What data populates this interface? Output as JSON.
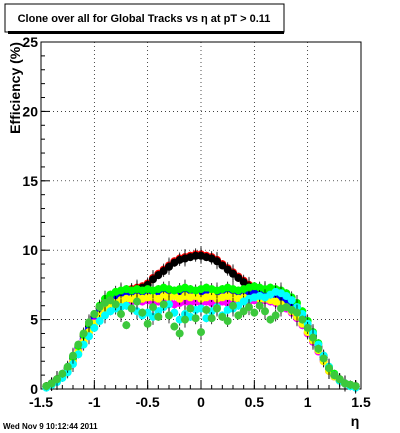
{
  "title": "Clone  over all for Global Tracks vs η at pT > 0.11",
  "ylabel": "Efficiency (%)",
  "xlabel": "η",
  "timestamp": "Wed Nov  9 10:12:44 2011",
  "x_tick_labels": [
    "-1.5",
    "-1",
    "-0.5",
    "0",
    "0.5",
    "1",
    "1.5"
  ],
  "y_tick_labels": [
    "0",
    "5",
    "10",
    "15",
    "20",
    "25"
  ],
  "chart_data": {
    "type": "scatter",
    "title": "Clone  over all for Global Tracks vs η at pT > 0.11",
    "xlabel": "η",
    "ylabel": "Efficiency (%)",
    "xlim": [
      -1.5,
      1.5
    ],
    "ylim": [
      0,
      25
    ],
    "grid": true,
    "x_ticks": [
      -1.5,
      -1,
      -0.5,
      0,
      0.5,
      1,
      1.5
    ],
    "y_ticks": [
      0,
      5,
      10,
      15,
      20,
      25
    ],
    "x": [
      -1.45,
      -1.4,
      -1.35,
      -1.3,
      -1.25,
      -1.2,
      -1.15,
      -1.1,
      -1.05,
      -1.0,
      -0.95,
      -0.9,
      -0.85,
      -0.8,
      -0.75,
      -0.7,
      -0.65,
      -0.6,
      -0.55,
      -0.5,
      -0.45,
      -0.4,
      -0.35,
      -0.3,
      -0.25,
      -0.2,
      -0.15,
      -0.1,
      -0.05,
      0.0,
      0.05,
      0.1,
      0.15,
      0.2,
      0.25,
      0.3,
      0.35,
      0.4,
      0.45,
      0.5,
      0.55,
      0.6,
      0.65,
      0.7,
      0.75,
      0.8,
      0.85,
      0.9,
      0.95,
      1.0,
      1.05,
      1.1,
      1.15,
      1.2,
      1.25,
      1.3,
      1.35,
      1.4,
      1.45
    ],
    "series": [
      {
        "color": "#ff0000",
        "values": [
          0.2,
          0.4,
          0.7,
          1.0,
          1.5,
          2.3,
          3.1,
          3.9,
          4.6,
          5.3,
          5.9,
          6.3,
          6.6,
          6.8,
          7.0,
          7.1,
          7.2,
          7.3,
          7.4,
          7.6,
          8.0,
          8.3,
          8.6,
          8.9,
          9.2,
          9.4,
          9.5,
          9.6,
          9.7,
          9.7,
          9.6,
          9.5,
          9.3,
          9.0,
          8.7,
          8.4,
          8.1,
          7.8,
          7.5,
          7.3,
          7.2,
          7.1,
          7.0,
          6.9,
          6.8,
          6.6,
          6.3,
          5.9,
          5.3,
          4.6,
          3.9,
          3.1,
          2.3,
          1.5,
          1.0,
          0.7,
          0.4,
          0.3,
          0.2
        ]
      },
      {
        "color": "#000000",
        "values": [
          0.2,
          0.4,
          0.7,
          1.0,
          1.5,
          2.3,
          3.0,
          3.8,
          4.5,
          5.2,
          5.8,
          6.2,
          6.5,
          6.7,
          6.9,
          7.0,
          7.1,
          7.2,
          7.3,
          7.5,
          7.9,
          8.2,
          8.5,
          8.8,
          9.1,
          9.3,
          9.4,
          9.5,
          9.6,
          9.6,
          9.5,
          9.4,
          9.2,
          8.9,
          8.6,
          8.3,
          8.0,
          7.7,
          7.4,
          7.2,
          7.1,
          7.0,
          6.9,
          6.8,
          6.7,
          6.5,
          6.2,
          5.8,
          5.2,
          4.5,
          3.8,
          3.0,
          2.3,
          1.5,
          1.0,
          0.7,
          0.4,
          0.3,
          0.2
        ]
      },
      {
        "color": "#0000ff",
        "values": [
          0.2,
          0.4,
          0.6,
          0.9,
          1.4,
          2.1,
          2.9,
          3.6,
          4.3,
          5.0,
          5.6,
          6.0,
          6.3,
          6.5,
          6.7,
          6.8,
          6.8,
          6.9,
          6.9,
          7.0,
          6.9,
          6.8,
          6.9,
          6.8,
          6.9,
          6.8,
          6.9,
          7.0,
          6.9,
          6.8,
          6.9,
          6.8,
          6.9,
          7.0,
          6.9,
          6.8,
          6.9,
          7.0,
          6.9,
          6.9,
          6.8,
          6.9,
          6.8,
          6.7,
          6.6,
          6.4,
          6.1,
          5.7,
          5.1,
          4.4,
          3.7,
          2.9,
          2.1,
          1.4,
          0.9,
          0.6,
          0.4,
          0.3,
          0.2
        ]
      },
      {
        "color": "#ff00ff",
        "values": [
          0.2,
          0.3,
          0.6,
          0.9,
          1.3,
          2.0,
          2.8,
          3.5,
          4.1,
          4.8,
          5.3,
          5.7,
          6.0,
          6.2,
          6.3,
          6.4,
          6.3,
          6.4,
          6.3,
          6.4,
          6.2,
          6.3,
          6.2,
          6.3,
          6.1,
          6.2,
          6.3,
          6.2,
          6.3,
          6.2,
          6.3,
          6.2,
          6.1,
          6.3,
          6.2,
          6.3,
          6.2,
          6.4,
          6.3,
          6.4,
          6.3,
          6.4,
          6.3,
          6.2,
          6.0,
          5.8,
          5.5,
          5.1,
          4.6,
          4.0,
          3.4,
          2.7,
          2.0,
          1.3,
          0.9,
          0.6,
          0.4,
          0.3,
          0.2
        ]
      },
      {
        "color": "#ffff00",
        "values": [
          0.2,
          0.3,
          0.6,
          0.9,
          1.3,
          2.0,
          2.7,
          3.4,
          4.1,
          4.7,
          5.3,
          5.7,
          6.0,
          6.2,
          6.4,
          6.5,
          6.5,
          6.6,
          6.5,
          6.6,
          6.6,
          6.5,
          6.7,
          6.6,
          6.7,
          6.5,
          6.7,
          6.6,
          6.7,
          6.5,
          6.6,
          6.7,
          6.5,
          6.6,
          6.7,
          6.6,
          6.5,
          6.6,
          6.5,
          6.6,
          6.5,
          6.5,
          6.4,
          6.3,
          6.1,
          5.9,
          5.6,
          5.2,
          4.7,
          4.1,
          3.5,
          2.8,
          2.0,
          1.3,
          0.9,
          0.6,
          0.4,
          0.3,
          0.2
        ]
      },
      {
        "color": "#00ff00",
        "values": [
          0.2,
          0.4,
          0.7,
          1.0,
          1.5,
          2.3,
          3.1,
          3.9,
          4.7,
          5.4,
          6.0,
          6.5,
          6.8,
          7.0,
          7.1,
          7.2,
          7.1,
          7.2,
          7.1,
          7.2,
          7.1,
          7.2,
          7.3,
          7.2,
          7.1,
          7.2,
          7.3,
          7.2,
          7.1,
          7.2,
          7.3,
          7.2,
          7.1,
          7.2,
          7.3,
          7.2,
          7.1,
          7.2,
          7.3,
          7.4,
          7.3,
          7.2,
          7.3,
          7.2,
          7.1,
          6.9,
          6.6,
          6.2,
          5.6,
          4.9,
          4.1,
          3.3,
          2.4,
          1.6,
          1.1,
          0.7,
          0.4,
          0.3,
          0.2
        ]
      },
      {
        "color": "#00ffff",
        "values": [
          0.1,
          0.3,
          0.5,
          0.8,
          1.2,
          1.8,
          2.5,
          3.2,
          3.8,
          4.4,
          4.9,
          5.3,
          5.6,
          5.8,
          5.9,
          6.0,
          5.8,
          5.6,
          5.3,
          5.5,
          5.2,
          5.6,
          5.9,
          6.1,
          5.5,
          5.0,
          5.4,
          5.2,
          5.7,
          5.8,
          5.1,
          5.6,
          5.9,
          5.3,
          5.7,
          5.8,
          6.0,
          6.3,
          6.5,
          6.6,
          6.7,
          6.6,
          6.8,
          7.0,
          6.9,
          6.7,
          6.4,
          5.9,
          5.4,
          4.7,
          4.0,
          3.2,
          2.4,
          1.6,
          1.0,
          0.6,
          0.4,
          0.2,
          0.1
        ]
      },
      {
        "color": "#3cc83c",
        "values": [
          0.2,
          0.4,
          0.7,
          1.1,
          1.6,
          2.4,
          3.2,
          4.0,
          4.8,
          5.4,
          5.9,
          6.2,
          6.4,
          6.1,
          5.4,
          4.6,
          5.8,
          6.3,
          5.5,
          4.7,
          5.9,
          5.2,
          6.1,
          5.3,
          4.5,
          4.0,
          5.0,
          5.8,
          5.1,
          4.1,
          5.7,
          5.1,
          5.8,
          5.2,
          4.9,
          6.0,
          5.3,
          5.6,
          5.9,
          5.5,
          6.0,
          5.6,
          5.0,
          5.3,
          5.8,
          5.9,
          5.7,
          5.5,
          5.0,
          4.4,
          3.7,
          2.9,
          2.2,
          1.5,
          1.0,
          0.7,
          0.4,
          0.3,
          0.2
        ]
      }
    ]
  }
}
